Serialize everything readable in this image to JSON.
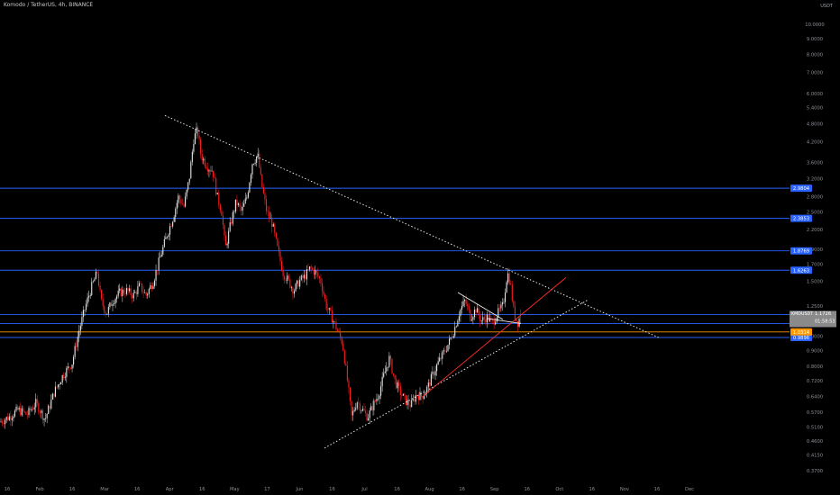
{
  "header": {
    "title": "Komodo / TetherUS, 4h, BINANCE",
    "unit": "USDT"
  },
  "chart_data": {
    "type": "candlestick",
    "symbol": "KMDUSDT",
    "interval": "4h",
    "exchange": "BINANCE",
    "scale": "log",
    "grid": false,
    "ylim": [
      0.345,
      11.5
    ],
    "y_ticks": [
      "10.0000",
      "9.0000",
      "8.0000",
      "7.0000",
      "6.0000",
      "5.4000",
      "4.8000",
      "4.2000",
      "3.6000",
      "3.2000",
      "2.8000",
      "2.5000",
      "2.2000",
      "1.9000",
      "1.7000",
      "1.5000",
      "1.2500",
      "1.0000",
      "0.9000",
      "0.8000",
      "0.7200",
      "0.6400",
      "0.5700",
      "0.5100",
      "0.4600",
      "0.4150",
      "0.3700"
    ],
    "x_ticks": [
      "16",
      "Feb",
      "16",
      "Mar",
      "16",
      "Apr",
      "16",
      "May",
      "17",
      "Jun",
      "16",
      "Jul",
      "16",
      "Aug",
      "16",
      "Sep",
      "16",
      "Oct",
      "16",
      "Nov",
      "16",
      "Dec"
    ],
    "price_path": [
      [
        0,
        0.53
      ],
      [
        10,
        0.55
      ],
      [
        20,
        0.58
      ],
      [
        30,
        0.56
      ],
      [
        40,
        0.61
      ],
      [
        50,
        0.54
      ],
      [
        60,
        0.66
      ],
      [
        70,
        0.75
      ],
      [
        80,
        0.82
      ],
      [
        88,
        1.05
      ],
      [
        95,
        1.25
      ],
      [
        102,
        1.45
      ],
      [
        108,
        1.6
      ],
      [
        112,
        1.3
      ],
      [
        118,
        1.18
      ],
      [
        125,
        1.3
      ],
      [
        133,
        1.38
      ],
      [
        140,
        1.4
      ],
      [
        148,
        1.35
      ],
      [
        155,
        1.45
      ],
      [
        162,
        1.35
      ],
      [
        170,
        1.5
      ],
      [
        178,
        1.8
      ],
      [
        185,
        2.1
      ],
      [
        192,
        2.4
      ],
      [
        198,
        2.8
      ],
      [
        204,
        2.6
      ],
      [
        210,
        3.2
      ],
      [
        215,
        4.3
      ],
      [
        219,
        4.6
      ],
      [
        223,
        3.8
      ],
      [
        230,
        3.5
      ],
      [
        236,
        3.4
      ],
      [
        241,
        2.8
      ],
      [
        246,
        2.5
      ],
      [
        250,
        1.9
      ],
      [
        256,
        2.3
      ],
      [
        262,
        2.7
      ],
      [
        268,
        2.5
      ],
      [
        274,
        2.8
      ],
      [
        280,
        3.6
      ],
      [
        286,
        3.8
      ],
      [
        290,
        3.1
      ],
      [
        296,
        2.5
      ],
      [
        302,
        2.3
      ],
      [
        308,
        1.9
      ],
      [
        314,
        1.6
      ],
      [
        320,
        1.5
      ],
      [
        326,
        1.4
      ],
      [
        332,
        1.5
      ],
      [
        338,
        1.55
      ],
      [
        344,
        1.65
      ],
      [
        350,
        1.6
      ],
      [
        356,
        1.5
      ],
      [
        362,
        1.25
      ],
      [
        368,
        1.15
      ],
      [
        374,
        1.05
      ],
      [
        380,
        0.95
      ],
      [
        386,
        0.7
      ],
      [
        390,
        0.55
      ],
      [
        396,
        0.62
      ],
      [
        402,
        0.58
      ],
      [
        408,
        0.55
      ],
      [
        414,
        0.6
      ],
      [
        420,
        0.65
      ],
      [
        426,
        0.75
      ],
      [
        432,
        0.85
      ],
      [
        438,
        0.72
      ],
      [
        444,
        0.66
      ],
      [
        450,
        0.62
      ],
      [
        456,
        0.6
      ],
      [
        462,
        0.65
      ],
      [
        468,
        0.64
      ],
      [
        474,
        0.68
      ],
      [
        480,
        0.75
      ],
      [
        486,
        0.82
      ],
      [
        492,
        0.88
      ],
      [
        498,
        0.95
      ],
      [
        504,
        1.05
      ],
      [
        510,
        1.2
      ],
      [
        516,
        1.3
      ],
      [
        522,
        1.15
      ],
      [
        528,
        1.22
      ],
      [
        534,
        1.12
      ],
      [
        540,
        1.15
      ],
      [
        546,
        1.1
      ],
      [
        552,
        1.18
      ],
      [
        558,
        1.25
      ],
      [
        563,
        1.6
      ],
      [
        566,
        1.5
      ],
      [
        570,
        1.2
      ],
      [
        574,
        1.1
      ],
      [
        578,
        1.17
      ]
    ],
    "last_candle": {
      "ohlc": [
        1.18,
        1.22,
        1.1,
        1.17
      ]
    },
    "horizontal_levels": [
      {
        "value": 2.9804,
        "label": "2.9804",
        "color": "#2962ff"
      },
      {
        "value": 2.3853,
        "label": "2.3853",
        "color": "#2962ff"
      },
      {
        "value": 1.8769,
        "label": "1.8769",
        "color": "#2962ff"
      },
      {
        "value": 1.6263,
        "label": "1.6263",
        "color": "#2962ff"
      },
      {
        "value": 1.1731,
        "label": "1.1731",
        "color": "#2962ff"
      },
      {
        "value": 1.0971,
        "label": "1.0971",
        "color": "#2962ff"
      },
      {
        "value": 0.9896,
        "label": "0.9896",
        "color": "#2962ff"
      },
      {
        "value": 1.0314,
        "label": "1.0314",
        "color": "#ff9800"
      }
    ],
    "current_price": {
      "symbol": "KMDUSDT",
      "value": "1.1726",
      "countdown": "01:58:53",
      "color": "#8a8a8a"
    },
    "trendlines": [
      {
        "kind": "resistance",
        "style": "dotted",
        "color": "#e8e8e8",
        "from": [
          183,
          5.1
        ],
        "to": [
          732,
          0.9857
        ]
      },
      {
        "kind": "support",
        "style": "dotted",
        "color": "#e8e8e8",
        "from": [
          360,
          0.4372
        ],
        "to": [
          652,
          1.3044
        ]
      },
      {
        "kind": "channel",
        "style": "solid",
        "color": "#ff2b2b",
        "from": [
          468,
          0.6364
        ],
        "to": [
          628,
          1.5409
        ]
      },
      {
        "kind": "flag",
        "style": "solid",
        "color": "#f0f0f0",
        "from": [
          508,
          1.38
        ],
        "to": [
          558,
          1.1303
        ]
      },
      {
        "kind": "flag",
        "style": "solid",
        "color": "#f0f0f0",
        "from": [
          540,
          1.1389
        ],
        "to": [
          578,
          1.0971
        ]
      }
    ],
    "bull_color": "#e8e8e8",
    "bear_color": "#ff1f1f"
  }
}
